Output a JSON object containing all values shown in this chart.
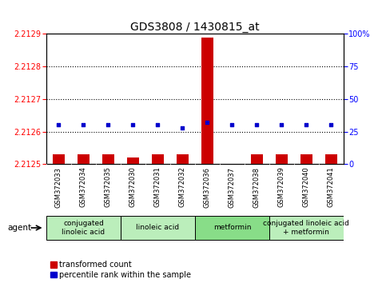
{
  "title": "GDS3808 / 1430815_at",
  "samples": [
    "GSM372033",
    "GSM372034",
    "GSM372035",
    "GSM372030",
    "GSM372031",
    "GSM372032",
    "GSM372036",
    "GSM372037",
    "GSM372038",
    "GSM372039",
    "GSM372040",
    "GSM372041"
  ],
  "transformed_count": [
    2.21253,
    2.21253,
    2.21253,
    2.21252,
    2.21253,
    2.21253,
    2.21289,
    2.2125,
    2.21253,
    2.21253,
    2.21253,
    2.21253
  ],
  "percentile_rank": [
    30,
    30,
    30,
    30,
    30,
    28,
    32,
    30,
    30,
    30,
    30,
    30
  ],
  "ylim_left": [
    2.2125,
    2.2129
  ],
  "ylim_right": [
    0,
    100
  ],
  "yticks_left": [
    2.2125,
    2.2126,
    2.2127,
    2.2128,
    2.2129
  ],
  "yticks_right": [
    0,
    25,
    50,
    75,
    100
  ],
  "ytick_right_labels": [
    "0",
    "25",
    "50",
    "75",
    "100%"
  ],
  "bar_color": "#cc0000",
  "dot_color": "#0000cc",
  "bar_bottom": 2.2125,
  "agent_groups": [
    {
      "label": "conjugated\nlinoleic acid",
      "start": 0,
      "end": 3,
      "color": "#bbeebb"
    },
    {
      "label": "linoleic acid",
      "start": 3,
      "end": 6,
      "color": "#bbeebb"
    },
    {
      "label": "metformin",
      "start": 6,
      "end": 9,
      "color": "#88dd88"
    },
    {
      "label": "conjugated linoleic acid\n+ metformin",
      "start": 9,
      "end": 12,
      "color": "#bbeebb"
    }
  ],
  "legend_bar_label": "transformed count",
  "legend_dot_label": "percentile rank within the sample",
  "agent_label": "agent",
  "title_fontsize": 10,
  "tick_fontsize": 7,
  "sample_fontsize": 6,
  "group_fontsize": 6.5,
  "legend_fontsize": 7,
  "background_agent": "#c8c8c8"
}
